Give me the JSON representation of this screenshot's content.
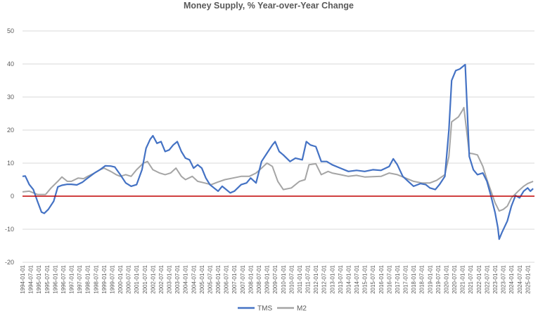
{
  "chart_data": {
    "type": "line",
    "title": "Money Supply, % Year-over-Year Change",
    "xlabel": "",
    "ylabel": "",
    "ylim": [
      -20,
      50
    ],
    "yticks": [
      -20,
      -10,
      0,
      10,
      20,
      30,
      40,
      50
    ],
    "grid": true,
    "legend_position": "bottom",
    "zero_line_color": "#c00000",
    "x_tick_labels": [
      "1994-01-01",
      "1994-07-01",
      "1995-01-01",
      "1995-07-01",
      "1996-01-01",
      "1996-07-01",
      "1997-01-01",
      "1997-07-01",
      "1998-01-01",
      "1998-07-01",
      "1999-01-01",
      "1999-07-01",
      "2000-01-01",
      "2000-07-01",
      "2001-01-01",
      "2001-07-01",
      "2002-01-01",
      "2002-07-01",
      "2003-01-01",
      "2003-07-01",
      "2004-01-01",
      "2004-07-01",
      "2005-01-01",
      "2005-07-01",
      "2006-01-01",
      "2006-07-01",
      "2007-01-01",
      "2007-07-01",
      "2008-01-01",
      "2008-07-01",
      "2009-01-01",
      "2009-07-01",
      "2010-01-01",
      "2010-07-01",
      "2011-01-01",
      "2011-07-01",
      "2012-01-01",
      "2012-07-01",
      "2013-01-01",
      "2013-07-01",
      "2014-01-01",
      "2014-07-01",
      "2015-01-01",
      "2015-07-01",
      "2016-01-01",
      "2016-07-01",
      "2017-01-01",
      "2017-07-01",
      "2018-01-01",
      "2018-07-01",
      "2019-01-01",
      "2019-07-01",
      "2020-01-01",
      "2020-07-01",
      "2021-01-01",
      "2021-07-01",
      "2022-01-01",
      "2022-07-01",
      "2023-01-01",
      "2023-07-01",
      "2024-01-01",
      "2024-07-01",
      "2025-01-01"
    ],
    "series": [
      {
        "name": "TMS",
        "color": "#4472c4",
        "points": [
          [
            "1994-01",
            6.0
          ],
          [
            "1994-03",
            6.1
          ],
          [
            "1994-06",
            3.5
          ],
          [
            "1994-09",
            2.0
          ],
          [
            "1994-12",
            -1.5
          ],
          [
            "1995-03",
            -4.8
          ],
          [
            "1995-05",
            -5.2
          ],
          [
            "1995-08",
            -4.0
          ],
          [
            "1995-12",
            -1.5
          ],
          [
            "1996-03",
            2.8
          ],
          [
            "1996-06",
            3.3
          ],
          [
            "1996-10",
            3.6
          ],
          [
            "1997-01",
            3.6
          ],
          [
            "1997-05",
            3.4
          ],
          [
            "1997-09",
            4.2
          ],
          [
            "1998-01",
            5.5
          ],
          [
            "1998-06",
            7.0
          ],
          [
            "1998-10",
            8.0
          ],
          [
            "1999-02",
            9.2
          ],
          [
            "1999-06",
            9.1
          ],
          [
            "1999-09",
            8.8
          ],
          [
            "2000-01",
            6.5
          ],
          [
            "2000-05",
            4.0
          ],
          [
            "2000-09",
            3.0
          ],
          [
            "2001-01",
            3.5
          ],
          [
            "2001-05",
            8.0
          ],
          [
            "2001-08",
            14.5
          ],
          [
            "2001-11",
            17.2
          ],
          [
            "2002-01",
            18.3
          ],
          [
            "2002-04",
            16.0
          ],
          [
            "2002-07",
            16.5
          ],
          [
            "2002-10",
            13.5
          ],
          [
            "2003-01",
            14.0
          ],
          [
            "2003-04",
            15.5
          ],
          [
            "2003-07",
            16.5
          ],
          [
            "2003-10",
            13.5
          ],
          [
            "2004-01",
            11.5
          ],
          [
            "2004-04",
            11.0
          ],
          [
            "2004-07",
            8.5
          ],
          [
            "2004-10",
            9.5
          ],
          [
            "2005-01",
            8.5
          ],
          [
            "2005-04",
            5.5
          ],
          [
            "2005-07",
            3.5
          ],
          [
            "2005-10",
            2.5
          ],
          [
            "2006-01",
            1.5
          ],
          [
            "2006-04",
            3.0
          ],
          [
            "2006-07",
            2.0
          ],
          [
            "2006-10",
            1.0
          ],
          [
            "2007-01",
            1.5
          ],
          [
            "2007-06",
            3.5
          ],
          [
            "2007-10",
            4.0
          ],
          [
            "2008-01",
            5.5
          ],
          [
            "2008-05",
            4.0
          ],
          [
            "2008-09",
            10.5
          ],
          [
            "2009-01",
            13.0
          ],
          [
            "2009-05",
            15.5
          ],
          [
            "2009-07",
            16.5
          ],
          [
            "2009-10",
            13.5
          ],
          [
            "2010-01",
            12.5
          ],
          [
            "2010-06",
            10.5
          ],
          [
            "2010-10",
            11.5
          ],
          [
            "2011-03",
            11.0
          ],
          [
            "2011-06",
            16.5
          ],
          [
            "2011-09",
            15.5
          ],
          [
            "2012-01",
            15.0
          ],
          [
            "2012-05",
            10.5
          ],
          [
            "2012-09",
            10.5
          ],
          [
            "2013-01",
            9.5
          ],
          [
            "2013-07",
            8.5
          ],
          [
            "2014-01",
            7.5
          ],
          [
            "2014-07",
            7.8
          ],
          [
            "2015-01",
            7.5
          ],
          [
            "2015-07",
            8.0
          ],
          [
            "2016-01",
            7.8
          ],
          [
            "2016-07",
            9.0
          ],
          [
            "2016-10",
            11.3
          ],
          [
            "2017-01",
            9.5
          ],
          [
            "2017-05",
            6.0
          ],
          [
            "2017-09",
            4.5
          ],
          [
            "2018-01",
            3.0
          ],
          [
            "2018-06",
            3.8
          ],
          [
            "2018-10",
            3.5
          ],
          [
            "2019-01",
            2.5
          ],
          [
            "2019-05",
            2.0
          ],
          [
            "2019-08",
            3.5
          ],
          [
            "2019-12",
            6.0
          ],
          [
            "2020-03",
            20.0
          ],
          [
            "2020-05",
            35.0
          ],
          [
            "2020-08",
            38.0
          ],
          [
            "2020-11",
            38.5
          ],
          [
            "2021-02",
            39.5
          ],
          [
            "2021-03",
            39.8
          ],
          [
            "2021-06",
            12.0
          ],
          [
            "2021-09",
            8.0
          ],
          [
            "2021-12",
            6.5
          ],
          [
            "2022-04",
            7.0
          ],
          [
            "2022-07",
            4.5
          ],
          [
            "2022-10",
            0.0
          ],
          [
            "2023-01",
            -5.0
          ],
          [
            "2023-03",
            -9.5
          ],
          [
            "2023-04",
            -13.0
          ],
          [
            "2023-06",
            -11.0
          ],
          [
            "2023-10",
            -7.5
          ],
          [
            "2024-01",
            -3.0
          ],
          [
            "2024-04",
            0.2
          ],
          [
            "2024-07",
            -0.5
          ],
          [
            "2024-10",
            1.5
          ],
          [
            "2025-01",
            2.5
          ],
          [
            "2025-03",
            1.5
          ],
          [
            "2025-05",
            2.3
          ]
        ]
      },
      {
        "name": "M2",
        "color": "#a5a5a5",
        "points": [
          [
            "1994-01",
            1.3
          ],
          [
            "1994-06",
            1.5
          ],
          [
            "1994-12",
            0.5
          ],
          [
            "1995-06",
            0.5
          ],
          [
            "1995-10",
            2.5
          ],
          [
            "1996-03",
            4.5
          ],
          [
            "1996-06",
            5.8
          ],
          [
            "1996-10",
            4.5
          ],
          [
            "1997-01",
            4.5
          ],
          [
            "1997-06",
            5.5
          ],
          [
            "1997-10",
            5.3
          ],
          [
            "1998-01",
            6.0
          ],
          [
            "1998-06",
            7.0
          ],
          [
            "1998-10",
            8.0
          ],
          [
            "1999-01",
            8.5
          ],
          [
            "1999-06",
            7.5
          ],
          [
            "1999-10",
            6.5
          ],
          [
            "2000-01",
            6.0
          ],
          [
            "2000-05",
            6.5
          ],
          [
            "2000-09",
            6.0
          ],
          [
            "2001-01",
            8.0
          ],
          [
            "2001-06",
            10.0
          ],
          [
            "2001-09",
            10.5
          ],
          [
            "2002-01",
            8.0
          ],
          [
            "2002-06",
            7.0
          ],
          [
            "2002-10",
            6.5
          ],
          [
            "2003-02",
            7.0
          ],
          [
            "2003-06",
            8.5
          ],
          [
            "2003-10",
            6.0
          ],
          [
            "2004-01",
            5.0
          ],
          [
            "2004-06",
            6.0
          ],
          [
            "2004-10",
            4.5
          ],
          [
            "2005-03",
            4.0
          ],
          [
            "2005-08",
            3.5
          ],
          [
            "2006-01",
            4.3
          ],
          [
            "2006-06",
            5.0
          ],
          [
            "2006-12",
            5.5
          ],
          [
            "2007-06",
            6.0
          ],
          [
            "2007-12",
            6.0
          ],
          [
            "2008-05",
            7.0
          ],
          [
            "2008-09",
            8.5
          ],
          [
            "2009-01",
            10.0
          ],
          [
            "2009-05",
            9.0
          ],
          [
            "2009-09",
            4.5
          ],
          [
            "2010-01",
            2.0
          ],
          [
            "2010-07",
            2.5
          ],
          [
            "2011-01",
            4.5
          ],
          [
            "2011-05",
            5.0
          ],
          [
            "2011-08",
            9.5
          ],
          [
            "2012-01",
            9.8
          ],
          [
            "2012-05",
            6.5
          ],
          [
            "2012-10",
            7.5
          ],
          [
            "2013-01",
            7.0
          ],
          [
            "2013-07",
            6.5
          ],
          [
            "2014-01",
            6.0
          ],
          [
            "2014-07",
            6.3
          ],
          [
            "2015-01",
            5.8
          ],
          [
            "2015-07",
            5.9
          ],
          [
            "2016-01",
            6.0
          ],
          [
            "2016-07",
            7.0
          ],
          [
            "2017-01",
            6.5
          ],
          [
            "2017-07",
            5.5
          ],
          [
            "2018-01",
            4.5
          ],
          [
            "2018-07",
            4.0
          ],
          [
            "2019-01",
            4.0
          ],
          [
            "2019-06",
            4.8
          ],
          [
            "2019-12",
            6.5
          ],
          [
            "2020-03",
            12.0
          ],
          [
            "2020-05",
            22.5
          ],
          [
            "2020-10",
            24.0
          ],
          [
            "2021-01",
            26.0
          ],
          [
            "2021-02",
            26.8
          ],
          [
            "2021-06",
            13.0
          ],
          [
            "2021-09",
            12.8
          ],
          [
            "2021-12",
            12.5
          ],
          [
            "2022-04",
            9.0
          ],
          [
            "2022-07",
            5.0
          ],
          [
            "2022-10",
            1.5
          ],
          [
            "2023-01",
            -2.0
          ],
          [
            "2023-04",
            -4.5
          ],
          [
            "2023-07",
            -4.0
          ],
          [
            "2023-10",
            -3.0
          ],
          [
            "2024-01",
            -0.5
          ],
          [
            "2024-06",
            1.5
          ],
          [
            "2024-10",
            3.0
          ],
          [
            "2025-01",
            3.8
          ],
          [
            "2025-05",
            4.5
          ]
        ]
      }
    ]
  }
}
